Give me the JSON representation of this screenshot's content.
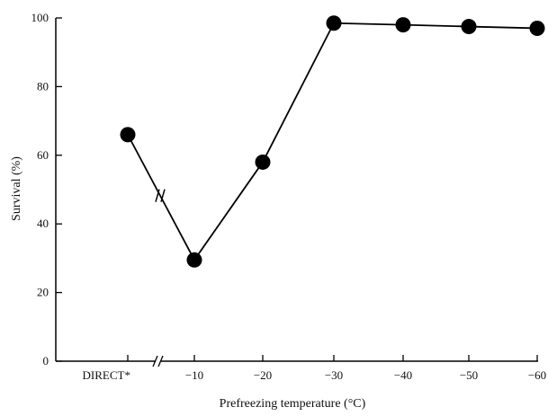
{
  "chart_data": {
    "type": "line",
    "title": "",
    "xlabel": "Prefreezing temperature (°C)",
    "ylabel": "Survival (%)",
    "categories": [
      "DIRECT*",
      "−10",
      "−20",
      "−30",
      "−40",
      "−50",
      "−60"
    ],
    "series": [
      {
        "values": [
          66,
          29.5,
          58,
          98.5,
          98,
          97.5,
          97
        ]
      }
    ],
    "ylim": [
      0,
      100
    ],
    "yticks": [
      "0",
      "20",
      "40",
      "60",
      "80",
      "100"
    ],
    "axis_break": "between DIRECT* and −10",
    "grid": false,
    "legend": "none",
    "colors": {
      "line": "#000000",
      "marker": "#000000",
      "axis": "#000000"
    }
  }
}
